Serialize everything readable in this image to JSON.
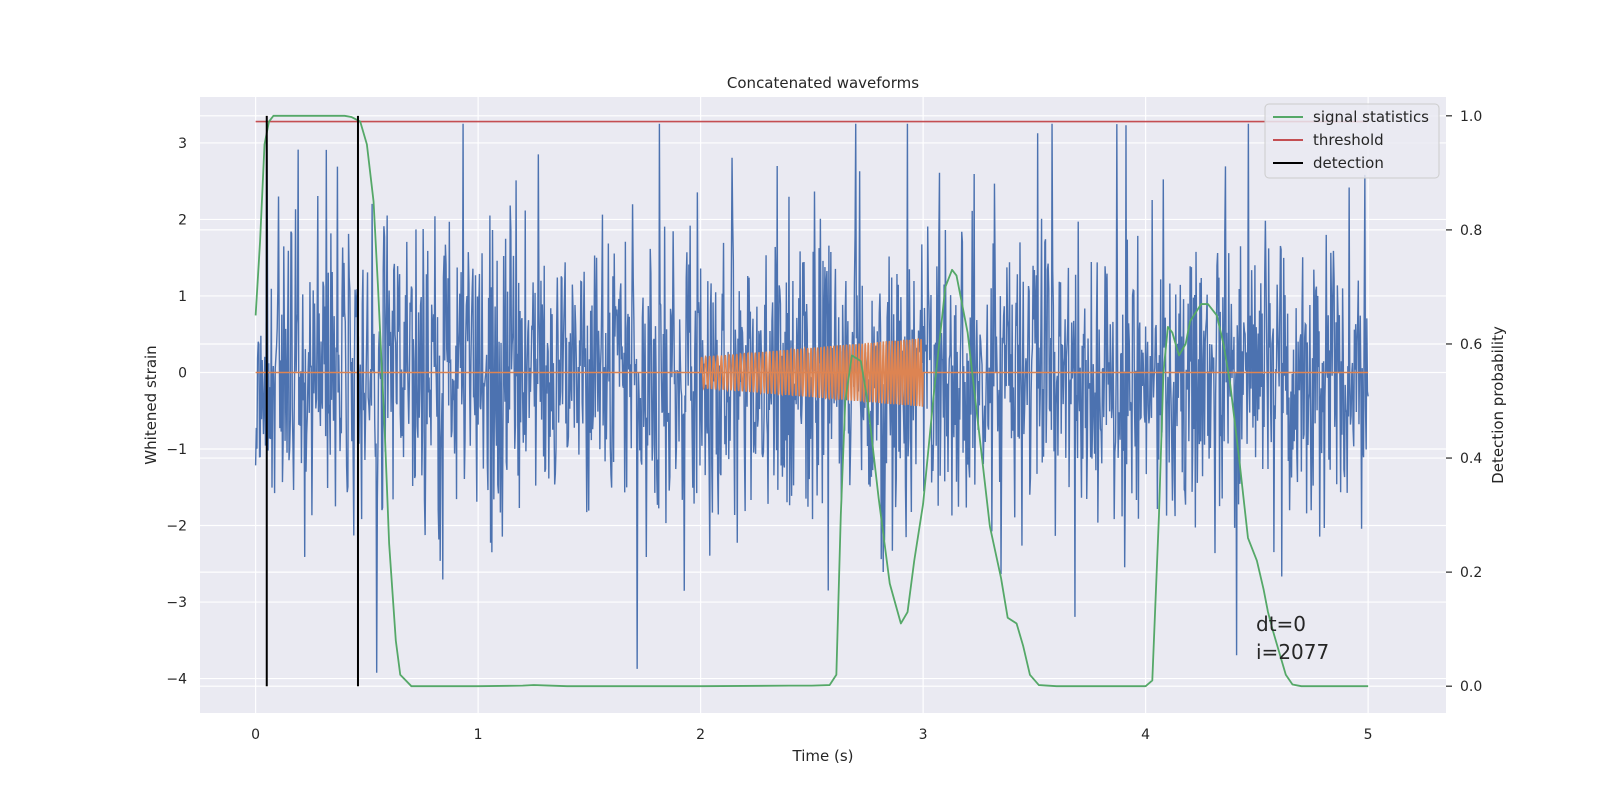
{
  "chart_data": {
    "type": "line",
    "title": "Concatenated waveforms",
    "xlabel": "Time (s)",
    "ylabel": "Whitened strain",
    "y2label": "Detection probability",
    "xlim": [
      -0.25,
      5.35
    ],
    "ylim": [
      -4.45,
      3.6
    ],
    "y2lim": [
      -0.047,
      1.033
    ],
    "xticks": [
      0,
      1,
      2,
      3,
      4,
      5
    ],
    "yticks": [
      -4,
      -3,
      -2,
      -1,
      0,
      1,
      2,
      3
    ],
    "y2ticks": [
      0.0,
      0.2,
      0.4,
      0.6,
      0.8,
      1.0
    ],
    "grid": true,
    "legend_position": "upper right",
    "legend": [
      {
        "label": "signal statistics",
        "color": "#55a868"
      },
      {
        "label": "threshold",
        "color": "#c44e52"
      },
      {
        "label": "detection",
        "color": "#000000"
      }
    ],
    "series": [
      {
        "name": "signal statistics",
        "axis": "right",
        "color": "#55a868",
        "x": [
          0.0,
          0.02,
          0.04,
          0.06,
          0.08,
          0.1,
          0.15,
          0.2,
          0.3,
          0.4,
          0.43,
          0.47,
          0.5,
          0.53,
          0.55,
          0.58,
          0.6,
          0.63,
          0.65,
          0.7,
          0.8,
          1.0,
          1.2,
          1.25,
          1.4,
          1.6,
          2.0,
          2.4,
          2.5,
          2.58,
          2.61,
          2.63,
          2.65,
          2.68,
          2.72,
          2.75,
          2.8,
          2.85,
          2.9,
          2.93,
          2.96,
          3.0,
          3.05,
          3.1,
          3.13,
          3.15,
          3.2,
          3.25,
          3.3,
          3.35,
          3.38,
          3.42,
          3.45,
          3.48,
          3.52,
          3.6,
          3.8,
          4.0,
          4.03,
          4.06,
          4.08,
          4.1,
          4.12,
          4.15,
          4.18,
          4.2,
          4.25,
          4.28,
          4.32,
          4.35,
          4.38,
          4.42,
          4.46,
          4.5,
          4.53,
          4.55,
          4.57,
          4.6,
          4.63,
          4.66,
          4.7,
          4.8,
          5.0
        ],
        "y": [
          0.65,
          0.78,
          0.95,
          0.99,
          1.0,
          1.0,
          1.0,
          1.0,
          1.0,
          1.0,
          0.998,
          0.99,
          0.95,
          0.85,
          0.7,
          0.45,
          0.25,
          0.08,
          0.02,
          0.0,
          0.0,
          0.0,
          0.001,
          0.002,
          0.0,
          0.0,
          0.0,
          0.001,
          0.001,
          0.002,
          0.02,
          0.3,
          0.5,
          0.58,
          0.57,
          0.5,
          0.33,
          0.18,
          0.11,
          0.13,
          0.22,
          0.32,
          0.52,
          0.7,
          0.73,
          0.72,
          0.62,
          0.45,
          0.28,
          0.19,
          0.12,
          0.11,
          0.07,
          0.02,
          0.002,
          0.0,
          0.0,
          0.0,
          0.01,
          0.3,
          0.55,
          0.63,
          0.62,
          0.58,
          0.6,
          0.64,
          0.67,
          0.67,
          0.65,
          0.6,
          0.53,
          0.4,
          0.26,
          0.22,
          0.17,
          0.13,
          0.1,
          0.06,
          0.02,
          0.003,
          0.0,
          0.0,
          0.0
        ]
      },
      {
        "name": "threshold",
        "axis": "right",
        "color": "#c44e52",
        "x": [
          0,
          5
        ],
        "y": [
          0.99,
          0.99
        ]
      },
      {
        "name": "detection",
        "axis": "left",
        "color": "#000000",
        "x_positions": [
          0.05,
          0.46
        ]
      },
      {
        "name": "",
        "axis": "left",
        "color": "#4c72b0",
        "noise": true,
        "x_range": [
          0,
          5
        ],
        "amplitude_range": [
          -4.1,
          3.25
        ]
      },
      {
        "name": "",
        "axis": "left",
        "color": "#dd8452",
        "chirp": true,
        "x_range": [
          2.0,
          3.0
        ],
        "amplitude_start": 0.2,
        "amplitude_end": 0.45
      }
    ],
    "annotations": [
      "dt=0",
      "i=2077"
    ]
  }
}
